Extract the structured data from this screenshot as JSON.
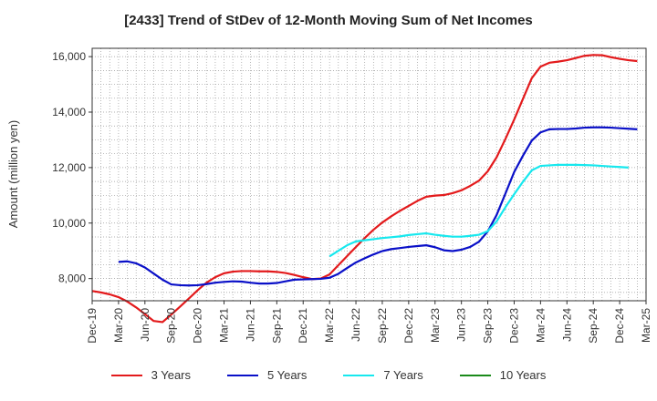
{
  "chart_data": {
    "type": "line",
    "title": "[2433]  Trend of StDev of 12-Month Moving Sum of Net Incomes",
    "ylabel": "Amount (million yen)",
    "xlabel": "",
    "x_tick_labels": [
      "Dec-19",
      "Mar-20",
      "Jun-20",
      "Sep-20",
      "Dec-20",
      "Mar-21",
      "Jun-21",
      "Sep-21",
      "Dec-21",
      "Mar-22",
      "Jun-22",
      "Sep-22",
      "Dec-22",
      "Mar-23",
      "Jun-23",
      "Sep-23",
      "Dec-23",
      "Mar-24",
      "Jun-24",
      "Sep-24",
      "Dec-24",
      "Mar-25"
    ],
    "y_ticks": [
      8000,
      10000,
      12000,
      14000,
      16000
    ],
    "y_tick_labels": [
      "8,000",
      "10,000",
      "12,000",
      "14,000",
      "16,000"
    ],
    "ylim": [
      7200,
      16300
    ],
    "grid": true,
    "legend_position": "bottom",
    "months": [
      "2019-12",
      "2020-01",
      "2020-02",
      "2020-03",
      "2020-04",
      "2020-05",
      "2020-06",
      "2020-07",
      "2020-08",
      "2020-09",
      "2020-10",
      "2020-11",
      "2020-12",
      "2021-01",
      "2021-02",
      "2021-03",
      "2021-04",
      "2021-05",
      "2021-06",
      "2021-07",
      "2021-08",
      "2021-09",
      "2021-10",
      "2021-11",
      "2021-12",
      "2022-01",
      "2022-02",
      "2022-03",
      "2022-04",
      "2022-05",
      "2022-06",
      "2022-07",
      "2022-08",
      "2022-09",
      "2022-10",
      "2022-11",
      "2022-12",
      "2023-01",
      "2023-02",
      "2023-03",
      "2023-04",
      "2023-05",
      "2023-06",
      "2023-07",
      "2023-08",
      "2023-09",
      "2023-10",
      "2023-11",
      "2023-12",
      "2024-01",
      "2024-02",
      "2024-03",
      "2024-04",
      "2024-05",
      "2024-06",
      "2024-07",
      "2024-08",
      "2024-09",
      "2024-10",
      "2024-11",
      "2024-12",
      "2025-01",
      "2025-02",
      "2025-03"
    ],
    "series": [
      {
        "name": "3 Years",
        "color": "#e31a1c",
        "start_month": "2019-12",
        "values": [
          7550,
          7500,
          7430,
          7330,
          7170,
          6960,
          6720,
          6470,
          6430,
          6700,
          6990,
          7280,
          7580,
          7850,
          8050,
          8190,
          8250,
          8270,
          8270,
          8260,
          8260,
          8240,
          8200,
          8130,
          8050,
          7980,
          8000,
          8150,
          8480,
          8810,
          9140,
          9460,
          9760,
          10020,
          10240,
          10440,
          10620,
          10800,
          10950,
          10990,
          11010,
          11080,
          11180,
          11340,
          11530,
          11870,
          12370,
          13030,
          13730,
          14480,
          15220,
          15640,
          15780,
          15820,
          15870,
          15950,
          16030,
          16060,
          16050,
          15980,
          15920,
          15870,
          15840
        ]
      },
      {
        "name": "5 Years",
        "color": "#0a10c8",
        "start_month": "2020-03",
        "values": [
          8600,
          8620,
          8550,
          8400,
          8180,
          7960,
          7790,
          7760,
          7750,
          7760,
          7800,
          7850,
          7880,
          7900,
          7890,
          7850,
          7820,
          7820,
          7840,
          7900,
          7960,
          7970,
          7980,
          7990,
          8030,
          8170,
          8380,
          8580,
          8730,
          8870,
          8990,
          9060,
          9100,
          9140,
          9170,
          9200,
          9130,
          9020,
          8990,
          9040,
          9140,
          9330,
          9700,
          10290,
          11060,
          11840,
          12430,
          12970,
          13270,
          13380,
          13390,
          13390,
          13410,
          13440,
          13450,
          13450,
          13440,
          13420,
          13400,
          13380
        ]
      },
      {
        "name": "7 Years",
        "color": "#17e8ee",
        "start_month": "2022-03",
        "values": [
          8800,
          9000,
          9200,
          9340,
          9380,
          9420,
          9460,
          9490,
          9520,
          9570,
          9600,
          9630,
          9580,
          9540,
          9510,
          9510,
          9540,
          9580,
          9710,
          10060,
          10570,
          11040,
          11490,
          11900,
          12060,
          12080,
          12100,
          12100,
          12100,
          12090,
          12080,
          12060,
          12040,
          12020,
          12000
        ]
      },
      {
        "name": "10 Years",
        "color": "#1a8a1a",
        "start_month": "2025-03",
        "values": []
      }
    ]
  }
}
